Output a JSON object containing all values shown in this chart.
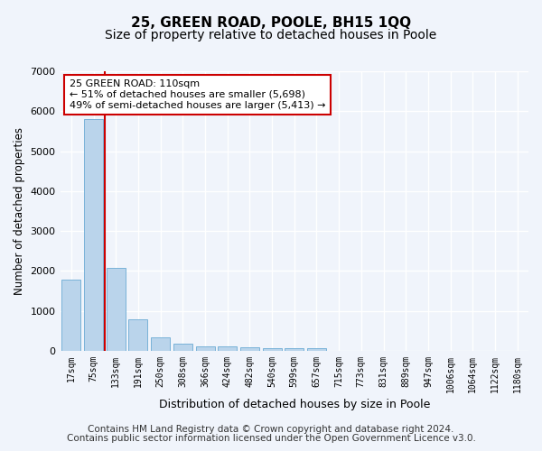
{
  "title": "25, GREEN ROAD, POOLE, BH15 1QQ",
  "subtitle": "Size of property relative to detached houses in Poole",
  "xlabel": "Distribution of detached houses by size in Poole",
  "ylabel": "Number of detached properties",
  "bar_labels": [
    "17sqm",
    "75sqm",
    "133sqm",
    "191sqm",
    "250sqm",
    "308sqm",
    "366sqm",
    "424sqm",
    "482sqm",
    "540sqm",
    "599sqm",
    "657sqm",
    "715sqm",
    "773sqm",
    "831sqm",
    "889sqm",
    "947sqm",
    "1006sqm",
    "1064sqm",
    "1122sqm",
    "1180sqm"
  ],
  "bar_values": [
    1780,
    5800,
    2080,
    800,
    340,
    190,
    120,
    105,
    90,
    80,
    75,
    70,
    0,
    0,
    0,
    0,
    0,
    0,
    0,
    0,
    0
  ],
  "bar_color": "#bad4eb",
  "bar_edge_color": "#6aaad4",
  "vline_x_index": 1,
  "vline_color": "#cc0000",
  "annotation_text": "25 GREEN ROAD: 110sqm\n← 51% of detached houses are smaller (5,698)\n49% of semi-detached houses are larger (5,413) →",
  "annotation_box_color": "#ffffff",
  "annotation_box_edge": "#cc0000",
  "ylim": [
    0,
    7000
  ],
  "yticks": [
    0,
    1000,
    2000,
    3000,
    4000,
    5000,
    6000,
    7000
  ],
  "footer_line1": "Contains HM Land Registry data © Crown copyright and database right 2024.",
  "footer_line2": "Contains public sector information licensed under the Open Government Licence v3.0.",
  "background_color": "#f0f4fb",
  "plot_bg_color": "#f0f4fb",
  "grid_color": "#ffffff",
  "title_fontsize": 11,
  "subtitle_fontsize": 10,
  "footer_fontsize": 7.5
}
